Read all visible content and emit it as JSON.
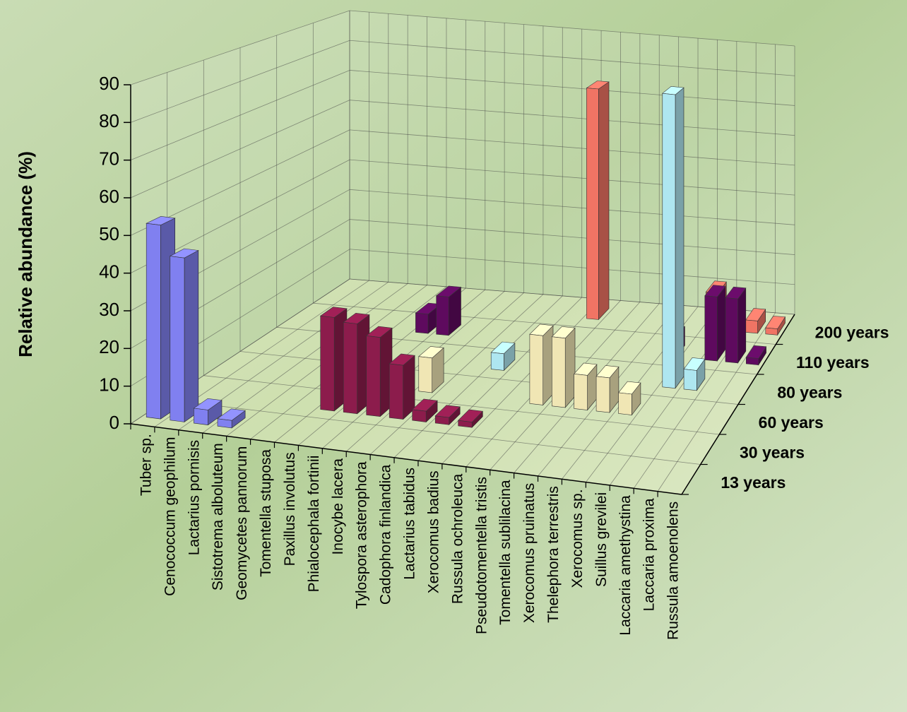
{
  "chart_data": {
    "type": "bar3d",
    "y_label": "Relative abundance  (%)",
    "ylim": [
      0,
      90
    ],
    "yticks": [
      0,
      10,
      20,
      30,
      40,
      50,
      60,
      70,
      80,
      90
    ],
    "grid": true,
    "categories": [
      "Tuber sp.",
      "Cenococcum geophilum",
      "Lactarius pornisis",
      "Sistotrema alboluteum",
      "Geomycetes pannorum",
      "Tomentella stuposa",
      "Paxillus involutus",
      "Phialocephala fortinii",
      "Inocybe lacera",
      "Tylospora asterophora",
      "Cadophora finlandica",
      "Lactarius tabidus",
      "Xerocomus badius",
      "Russula ochroleuca",
      "Pseudotomentella tristis",
      "Tomentella sublilacina",
      "Xerocomus pruinatus",
      "Thelephora terrestris",
      "Xerocomus sp.",
      "Suillus grevilei",
      "Laccaria amethystina",
      "Laccaria proxima",
      "Russula amoenolens"
    ],
    "series": [
      {
        "name": "13 years",
        "color": "#8080f0",
        "values": [
          52,
          44,
          4,
          2,
          null,
          null,
          null,
          null,
          null,
          null,
          null,
          null,
          null,
          null,
          null,
          null,
          null,
          null,
          null,
          null,
          null,
          null,
          null
        ]
      },
      {
        "name": "30 years",
        "color": "#8c1c4c",
        "values": [
          null,
          null,
          null,
          null,
          null,
          null,
          26,
          25,
          22,
          15,
          3,
          2,
          1.5,
          null,
          null,
          null,
          null,
          null,
          null,
          null,
          null,
          null,
          null
        ]
      },
      {
        "name": "60 years",
        "color": "#f0e6b4",
        "values": [
          null,
          null,
          null,
          null,
          null,
          6,
          null,
          null,
          null,
          10,
          null,
          null,
          null,
          null,
          20,
          20,
          10,
          10,
          6,
          null,
          null,
          null,
          null
        ]
      },
      {
        "name": "80 years",
        "color": "#aee6f0",
        "values": [
          null,
          null,
          null,
          null,
          null,
          null,
          null,
          null,
          null,
          null,
          null,
          5,
          null,
          null,
          null,
          null,
          null,
          null,
          null,
          88,
          6,
          null,
          null
        ]
      },
      {
        "name": "110 years",
        "color": "#5e0a5e",
        "values": [
          null,
          null,
          null,
          null,
          null,
          null,
          6,
          12,
          null,
          null,
          null,
          null,
          null,
          null,
          null,
          null,
          null,
          null,
          6,
          null,
          20,
          20,
          2
        ]
      },
      {
        "name": "200 years",
        "color": "#f07464",
        "values": [
          null,
          null,
          null,
          null,
          null,
          null,
          null,
          null,
          null,
          null,
          null,
          null,
          null,
          75,
          null,
          null,
          null,
          null,
          null,
          12,
          null,
          4,
          2
        ]
      }
    ]
  }
}
